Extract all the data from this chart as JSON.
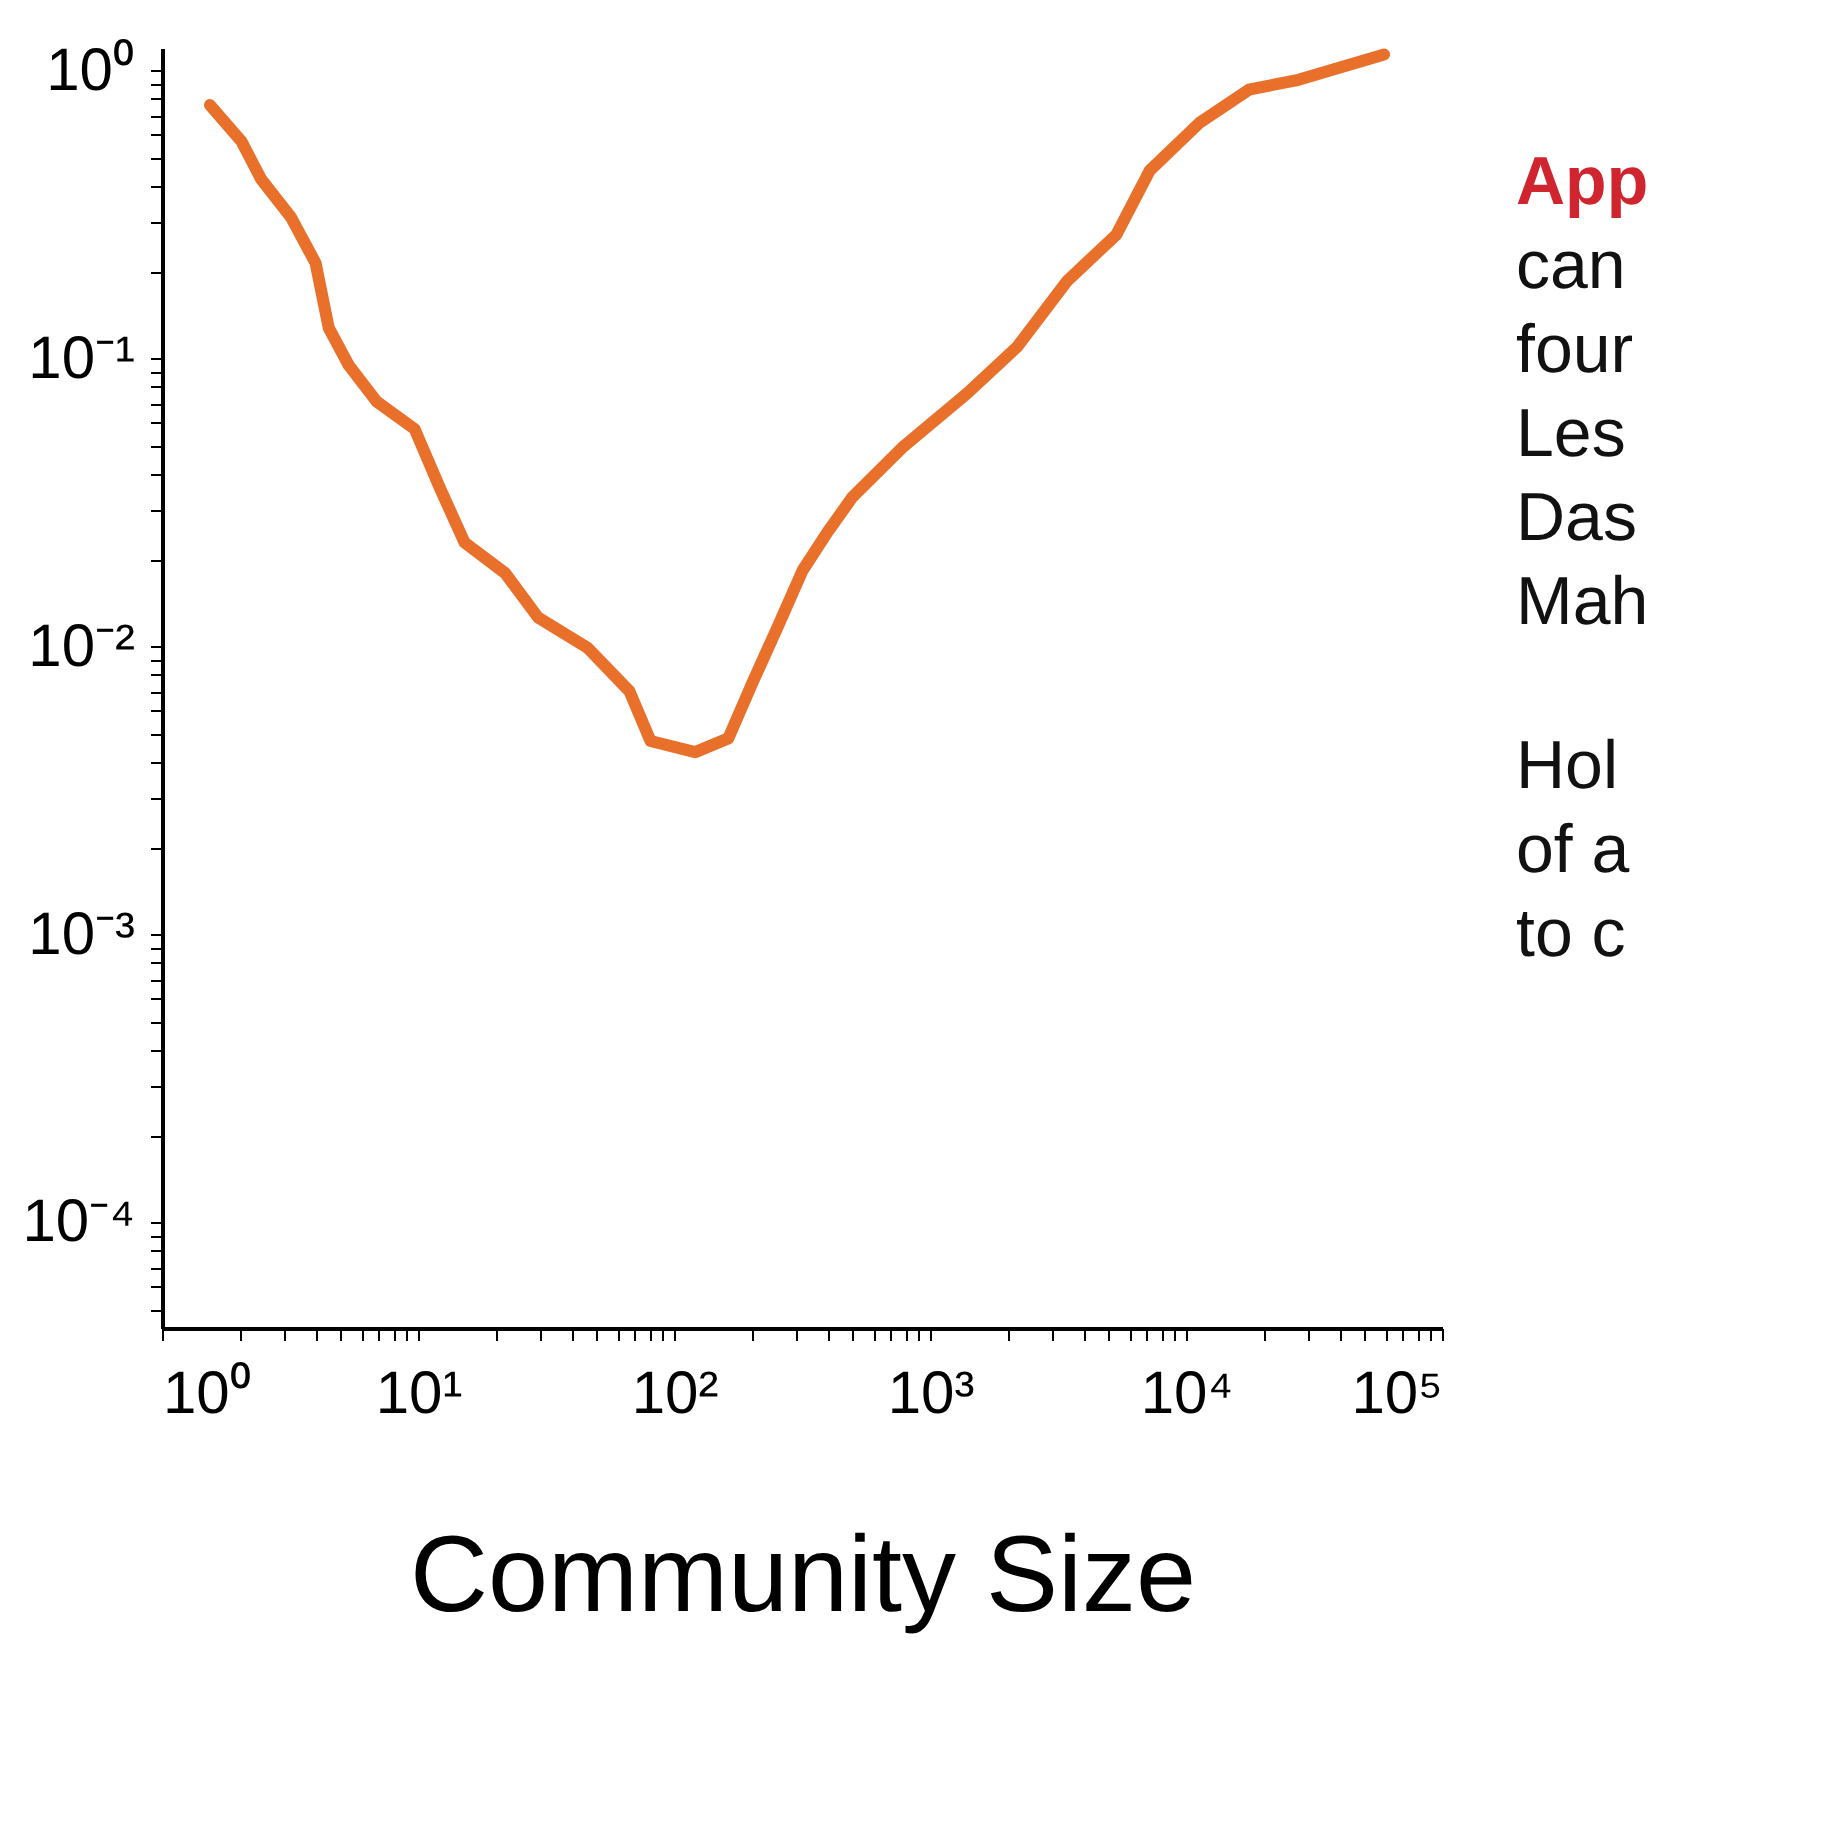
{
  "chart_data": {
    "type": "line",
    "xlabel": "Community Size",
    "log": "xy",
    "grid": false,
    "marker": "none",
    "line_style": "solid",
    "x": [
      1.54,
      2.04,
      2.44,
      3.19,
      3.98,
      4.48,
      5.36,
      6.9,
      9.7,
      12.1,
      15.2,
      21.9,
      29.5,
      46,
      67,
      81,
      121,
      163,
      204,
      255,
      318,
      398,
      497,
      777,
      1400,
      2190,
      3430,
      5350,
      7210,
      11300,
      17600,
      27500,
      59400
    ],
    "series": [
      {
        "color": "#e8702a",
        "values": [
          0.76,
          0.57,
          0.42,
          0.31,
          0.215,
          0.128,
          0.095,
          0.071,
          0.057,
          0.036,
          0.023,
          0.018,
          0.0126,
          0.0099,
          0.007,
          0.0047,
          0.0043,
          0.0048,
          0.0076,
          0.0118,
          0.0184,
          0.025,
          0.033,
          0.049,
          0.076,
          0.11,
          0.186,
          0.27,
          0.45,
          0.66,
          0.86,
          0.93,
          1.14
        ]
      }
    ],
    "xlim": [
      1,
      100000
    ],
    "ylim": [
      4.3e-05,
      1.2
    ],
    "xticks": [
      {
        "value": 1,
        "label": "10⁰"
      },
      {
        "value": 2,
        "label": null
      },
      {
        "value": 3,
        "label": null
      },
      {
        "value": 4,
        "label": null
      },
      {
        "value": 5,
        "label": null
      },
      {
        "value": 6,
        "label": null
      },
      {
        "value": 7,
        "label": null
      },
      {
        "value": 8,
        "label": null
      },
      {
        "value": 9,
        "label": null
      },
      {
        "value": 10,
        "label": "10¹"
      },
      {
        "value": 20,
        "label": null
      },
      {
        "value": 30,
        "label": null
      },
      {
        "value": 40,
        "label": null
      },
      {
        "value": 50,
        "label": null
      },
      {
        "value": 60,
        "label": null
      },
      {
        "value": 70,
        "label": null
      },
      {
        "value": 80,
        "label": null
      },
      {
        "value": 90,
        "label": null
      },
      {
        "value": 100,
        "label": "10²"
      },
      {
        "value": 200,
        "label": null
      },
      {
        "value": 300,
        "label": null
      },
      {
        "value": 400,
        "label": null
      },
      {
        "value": 500,
        "label": null
      },
      {
        "value": 600,
        "label": null
      },
      {
        "value": 700,
        "label": null
      },
      {
        "value": 800,
        "label": null
      },
      {
        "value": 900,
        "label": null
      },
      {
        "value": 1000,
        "label": "10³"
      },
      {
        "value": 2000,
        "label": null
      },
      {
        "value": 3000,
        "label": null
      },
      {
        "value": 4000,
        "label": null
      },
      {
        "value": 5000,
        "label": null
      },
      {
        "value": 6000,
        "label": null
      },
      {
        "value": 7000,
        "label": null
      },
      {
        "value": 8000,
        "label": null
      },
      {
        "value": 9000,
        "label": null
      },
      {
        "value": 10000,
        "label": "10⁴"
      },
      {
        "value": 20000,
        "label": null
      },
      {
        "value": 30000,
        "label": null
      },
      {
        "value": 40000,
        "label": null
      },
      {
        "value": 50000,
        "label": null
      },
      {
        "value": 60000,
        "label": null
      },
      {
        "value": 70000,
        "label": null
      },
      {
        "value": 80000,
        "label": null
      },
      {
        "value": 90000,
        "label": null
      },
      {
        "value": 100000,
        "label": "10⁵"
      }
    ],
    "yticks": [
      {
        "value": 5e-05,
        "label": null
      },
      {
        "value": 6e-05,
        "label": null
      },
      {
        "value": 7e-05,
        "label": null
      },
      {
        "value": 8e-05,
        "label": null
      },
      {
        "value": 9e-05,
        "label": null
      },
      {
        "value": 0.0001,
        "label": "10⁻⁴"
      },
      {
        "value": 0.0002,
        "label": null
      },
      {
        "value": 0.0003,
        "label": null
      },
      {
        "value": 0.0004,
        "label": null
      },
      {
        "value": 0.0005,
        "label": null
      },
      {
        "value": 0.0006,
        "label": null
      },
      {
        "value": 0.0007,
        "label": null
      },
      {
        "value": 0.0008,
        "label": null
      },
      {
        "value": 0.0009,
        "label": null
      },
      {
        "value": 0.001,
        "label": "10⁻³"
      },
      {
        "value": 0.002,
        "label": null
      },
      {
        "value": 0.003,
        "label": null
      },
      {
        "value": 0.004,
        "label": null
      },
      {
        "value": 0.005,
        "label": null
      },
      {
        "value": 0.006,
        "label": null
      },
      {
        "value": 0.007,
        "label": null
      },
      {
        "value": 0.008,
        "label": null
      },
      {
        "value": 0.009,
        "label": null
      },
      {
        "value": 0.01,
        "label": "10⁻²"
      },
      {
        "value": 0.02,
        "label": null
      },
      {
        "value": 0.03,
        "label": null
      },
      {
        "value": 0.04,
        "label": null
      },
      {
        "value": 0.05,
        "label": null
      },
      {
        "value": 0.06,
        "label": null
      },
      {
        "value": 0.07,
        "label": null
      },
      {
        "value": 0.08,
        "label": null
      },
      {
        "value": 0.09,
        "label": null
      },
      {
        "value": 0.1,
        "label": "10⁻¹"
      },
      {
        "value": 0.2,
        "label": null
      },
      {
        "value": 0.3,
        "label": null
      },
      {
        "value": 0.4,
        "label": null
      },
      {
        "value": 0.5,
        "label": null
      },
      {
        "value": 0.6,
        "label": null
      },
      {
        "value": 0.7,
        "label": null
      },
      {
        "value": 0.8,
        "label": null
      },
      {
        "value": 0.9,
        "label": null
      },
      {
        "value": 1,
        "label": "10⁰"
      }
    ],
    "annotations": [
      "App",
      "can",
      "four",
      "Les",
      "Das",
      "Mah",
      "Hol",
      "of a",
      "to c"
    ]
  }
}
